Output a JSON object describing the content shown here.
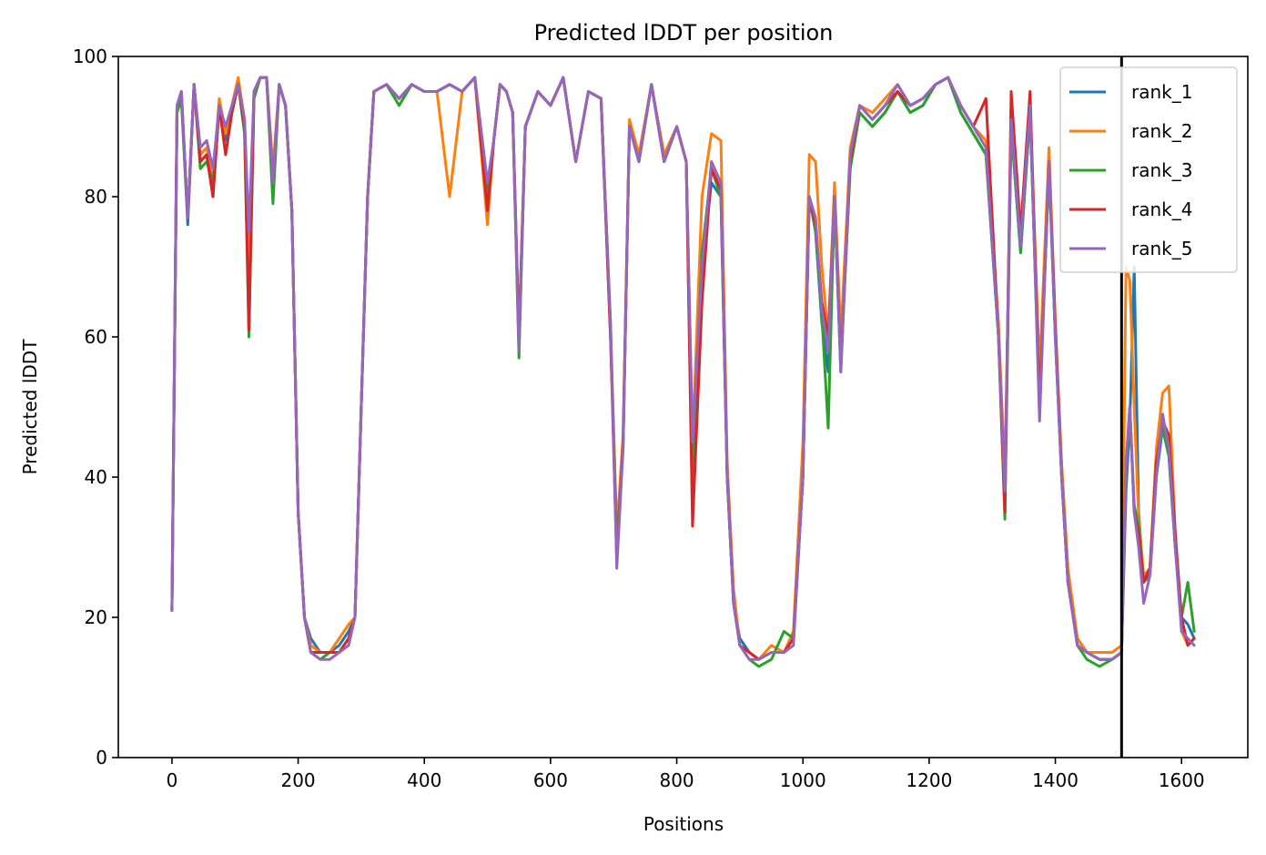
{
  "chart_data": {
    "type": "line",
    "title": "Predicted lDDT per position",
    "xlabel": "Positions",
    "ylabel": "Predicted lDDT",
    "xlim": [
      -85,
      1705
    ],
    "ylim": [
      0,
      100
    ],
    "xticks": [
      0,
      200,
      400,
      600,
      800,
      1000,
      1200,
      1400,
      1600
    ],
    "yticks": [
      0,
      20,
      40,
      60,
      80,
      100
    ],
    "grid": false,
    "legend_position": "upper right",
    "vline": {
      "x": 1505,
      "color": "#000000"
    },
    "x": [
      0,
      8,
      15,
      25,
      35,
      45,
      55,
      65,
      75,
      85,
      95,
      105,
      115,
      122,
      130,
      140,
      150,
      160,
      170,
      180,
      190,
      200,
      210,
      220,
      235,
      250,
      265,
      280,
      290,
      300,
      310,
      320,
      340,
      360,
      380,
      400,
      420,
      440,
      460,
      480,
      500,
      510,
      520,
      530,
      540,
      550,
      560,
      580,
      600,
      620,
      640,
      660,
      680,
      695,
      705,
      715,
      725,
      740,
      760,
      780,
      800,
      815,
      825,
      840,
      855,
      870,
      880,
      890,
      900,
      915,
      930,
      950,
      970,
      985,
      1000,
      1010,
      1020,
      1030,
      1040,
      1050,
      1060,
      1075,
      1090,
      1110,
      1130,
      1150,
      1170,
      1190,
      1210,
      1230,
      1250,
      1270,
      1290,
      1310,
      1320,
      1330,
      1345,
      1360,
      1375,
      1390,
      1400,
      1410,
      1420,
      1435,
      1450,
      1470,
      1490,
      1505,
      1512,
      1518,
      1525,
      1532,
      1540,
      1550,
      1560,
      1570,
      1580,
      1590,
      1600,
      1610,
      1620
    ],
    "series": [
      {
        "name": "rank_1",
        "color": "#1f77b4",
        "values": [
          21,
          92,
          94,
          76,
          96,
          85,
          86,
          80,
          93,
          88,
          92,
          96,
          90,
          67,
          95,
          97,
          97,
          82,
          96,
          93,
          78,
          35,
          20,
          17,
          15,
          15,
          16,
          18,
          20,
          50,
          80,
          95,
          96,
          94,
          96,
          95,
          95,
          96,
          95,
          97,
          80,
          88,
          96,
          95,
          92,
          60,
          90,
          95,
          93,
          97,
          85,
          95,
          94,
          60,
          32,
          45,
          90,
          85,
          96,
          85,
          90,
          85,
          40,
          70,
          82,
          80,
          40,
          22,
          17,
          15,
          14,
          15,
          15,
          17,
          40,
          80,
          75,
          62,
          55,
          80,
          55,
          85,
          92,
          90,
          92,
          95,
          92,
          93,
          96,
          97,
          92,
          89,
          86,
          60,
          38,
          90,
          72,
          92,
          50,
          85,
          60,
          40,
          25,
          17,
          15,
          14,
          14,
          15,
          38,
          48,
          70,
          35,
          25,
          26,
          40,
          47,
          43,
          30,
          20,
          19,
          17
        ]
      },
      {
        "name": "rank_2",
        "color": "#ff7f0e",
        "values": [
          21,
          93,
          95,
          77,
          96,
          86,
          87,
          82,
          94,
          89,
          93,
          97,
          91,
          70,
          95,
          97,
          97,
          84,
          96,
          93,
          78,
          35,
          20,
          16,
          15,
          15,
          17,
          19,
          20,
          50,
          80,
          95,
          96,
          94,
          96,
          95,
          95,
          80,
          95,
          97,
          76,
          88,
          96,
          95,
          92,
          60,
          90,
          95,
          93,
          97,
          85,
          95,
          94,
          62,
          32,
          46,
          91,
          86,
          96,
          86,
          90,
          85,
          45,
          80,
          89,
          88,
          42,
          24,
          16,
          15,
          14,
          16,
          15,
          18,
          45,
          86,
          85,
          70,
          60,
          82,
          60,
          87,
          93,
          92,
          94,
          96,
          93,
          94,
          96,
          97,
          93,
          90,
          88,
          62,
          40,
          91,
          75,
          93,
          55,
          87,
          62,
          42,
          27,
          17,
          15,
          15,
          15,
          16,
          70,
          68,
          50,
          34,
          26,
          27,
          44,
          52,
          53,
          32,
          18,
          16,
          17
        ]
      },
      {
        "name": "rank_3",
        "color": "#2ca02c",
        "values": [
          21,
          92,
          94,
          77,
          96,
          84,
          85,
          82,
          93,
          86,
          92,
          96,
          89,
          60,
          94,
          97,
          97,
          79,
          96,
          93,
          78,
          35,
          20,
          15,
          14,
          15,
          15,
          17,
          20,
          50,
          80,
          95,
          96,
          93,
          96,
          95,
          95,
          96,
          95,
          97,
          79,
          88,
          96,
          95,
          92,
          57,
          90,
          95,
          93,
          97,
          85,
          95,
          94,
          61,
          30,
          44,
          90,
          85,
          96,
          85,
          90,
          85,
          40,
          72,
          84,
          80,
          40,
          22,
          16,
          14,
          13,
          14,
          18,
          17,
          40,
          80,
          75,
          63,
          47,
          80,
          56,
          84,
          92,
          90,
          92,
          95,
          92,
          93,
          96,
          97,
          92,
          89,
          86,
          60,
          34,
          90,
          72,
          92,
          50,
          84,
          60,
          40,
          25,
          16,
          14,
          13,
          14,
          15,
          40,
          50,
          36,
          33,
          25,
          27,
          42,
          47,
          43,
          30,
          20,
          25,
          18
        ]
      },
      {
        "name": "rank_4",
        "color": "#d62728",
        "values": [
          21,
          93,
          95,
          77,
          96,
          85,
          86,
          80,
          93,
          86,
          92,
          96,
          90,
          61,
          95,
          97,
          97,
          82,
          96,
          93,
          78,
          35,
          20,
          15,
          15,
          15,
          15,
          17,
          20,
          50,
          80,
          95,
          96,
          94,
          96,
          95,
          95,
          96,
          95,
          97,
          78,
          88,
          96,
          95,
          92,
          60,
          90,
          95,
          93,
          97,
          85,
          95,
          94,
          60,
          28,
          45,
          90,
          85,
          96,
          85,
          90,
          85,
          33,
          65,
          84,
          81,
          40,
          22,
          16,
          15,
          14,
          15,
          15,
          17,
          40,
          80,
          76,
          65,
          60,
          80,
          56,
          85,
          93,
          91,
          93,
          95,
          93,
          94,
          96,
          97,
          93,
          90,
          94,
          60,
          35,
          95,
          75,
          95,
          50,
          85,
          62,
          40,
          25,
          16,
          15,
          14,
          14,
          15,
          42,
          50,
          35,
          32,
          25,
          27,
          42,
          48,
          46,
          32,
          20,
          16,
          17
        ]
      },
      {
        "name": "rank_5",
        "color": "#9467bd",
        "values": [
          21,
          93,
          95,
          77,
          96,
          87,
          88,
          84,
          93,
          90,
          93,
          96,
          91,
          75,
          95,
          97,
          97,
          82,
          96,
          93,
          78,
          35,
          20,
          15,
          14,
          14,
          15,
          16,
          20,
          50,
          80,
          95,
          96,
          94,
          96,
          95,
          95,
          96,
          95,
          97,
          82,
          88,
          96,
          95,
          92,
          58,
          90,
          95,
          93,
          97,
          85,
          95,
          94,
          62,
          27,
          44,
          90,
          85,
          96,
          85,
          90,
          85,
          45,
          70,
          85,
          82,
          40,
          22,
          16,
          14,
          14,
          15,
          15,
          16,
          40,
          80,
          77,
          64,
          58,
          80,
          55,
          86,
          93,
          91,
          93,
          96,
          93,
          94,
          96,
          97,
          93,
          90,
          87,
          60,
          38,
          91,
          73,
          93,
          48,
          85,
          60,
          40,
          25,
          16,
          15,
          14,
          14,
          15,
          42,
          50,
          35,
          30,
          22,
          26,
          40,
          49,
          44,
          30,
          18,
          17,
          16
        ]
      }
    ]
  }
}
